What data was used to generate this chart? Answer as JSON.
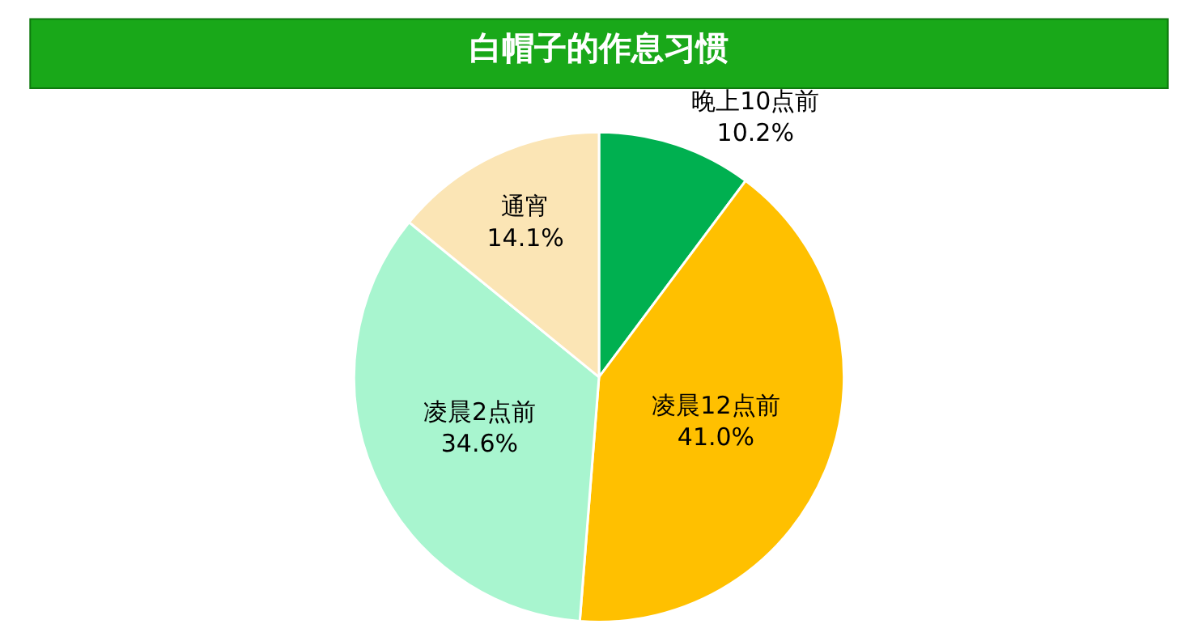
{
  "chart_data": {
    "type": "pie",
    "title": "白帽子的作息习惯",
    "categories": [
      "晚上10点前",
      "凌晨12点前",
      "凌晨2点前",
      "通宵"
    ],
    "values": [
      10.2,
      41.0,
      34.6,
      14.1
    ],
    "value_labels": [
      "10.2%",
      "41.0%",
      "34.6%",
      "14.1%"
    ],
    "colors": [
      "#00b050",
      "#ffc000",
      "#a8f5cf",
      "#fbe5b5"
    ],
    "legend": false
  }
}
